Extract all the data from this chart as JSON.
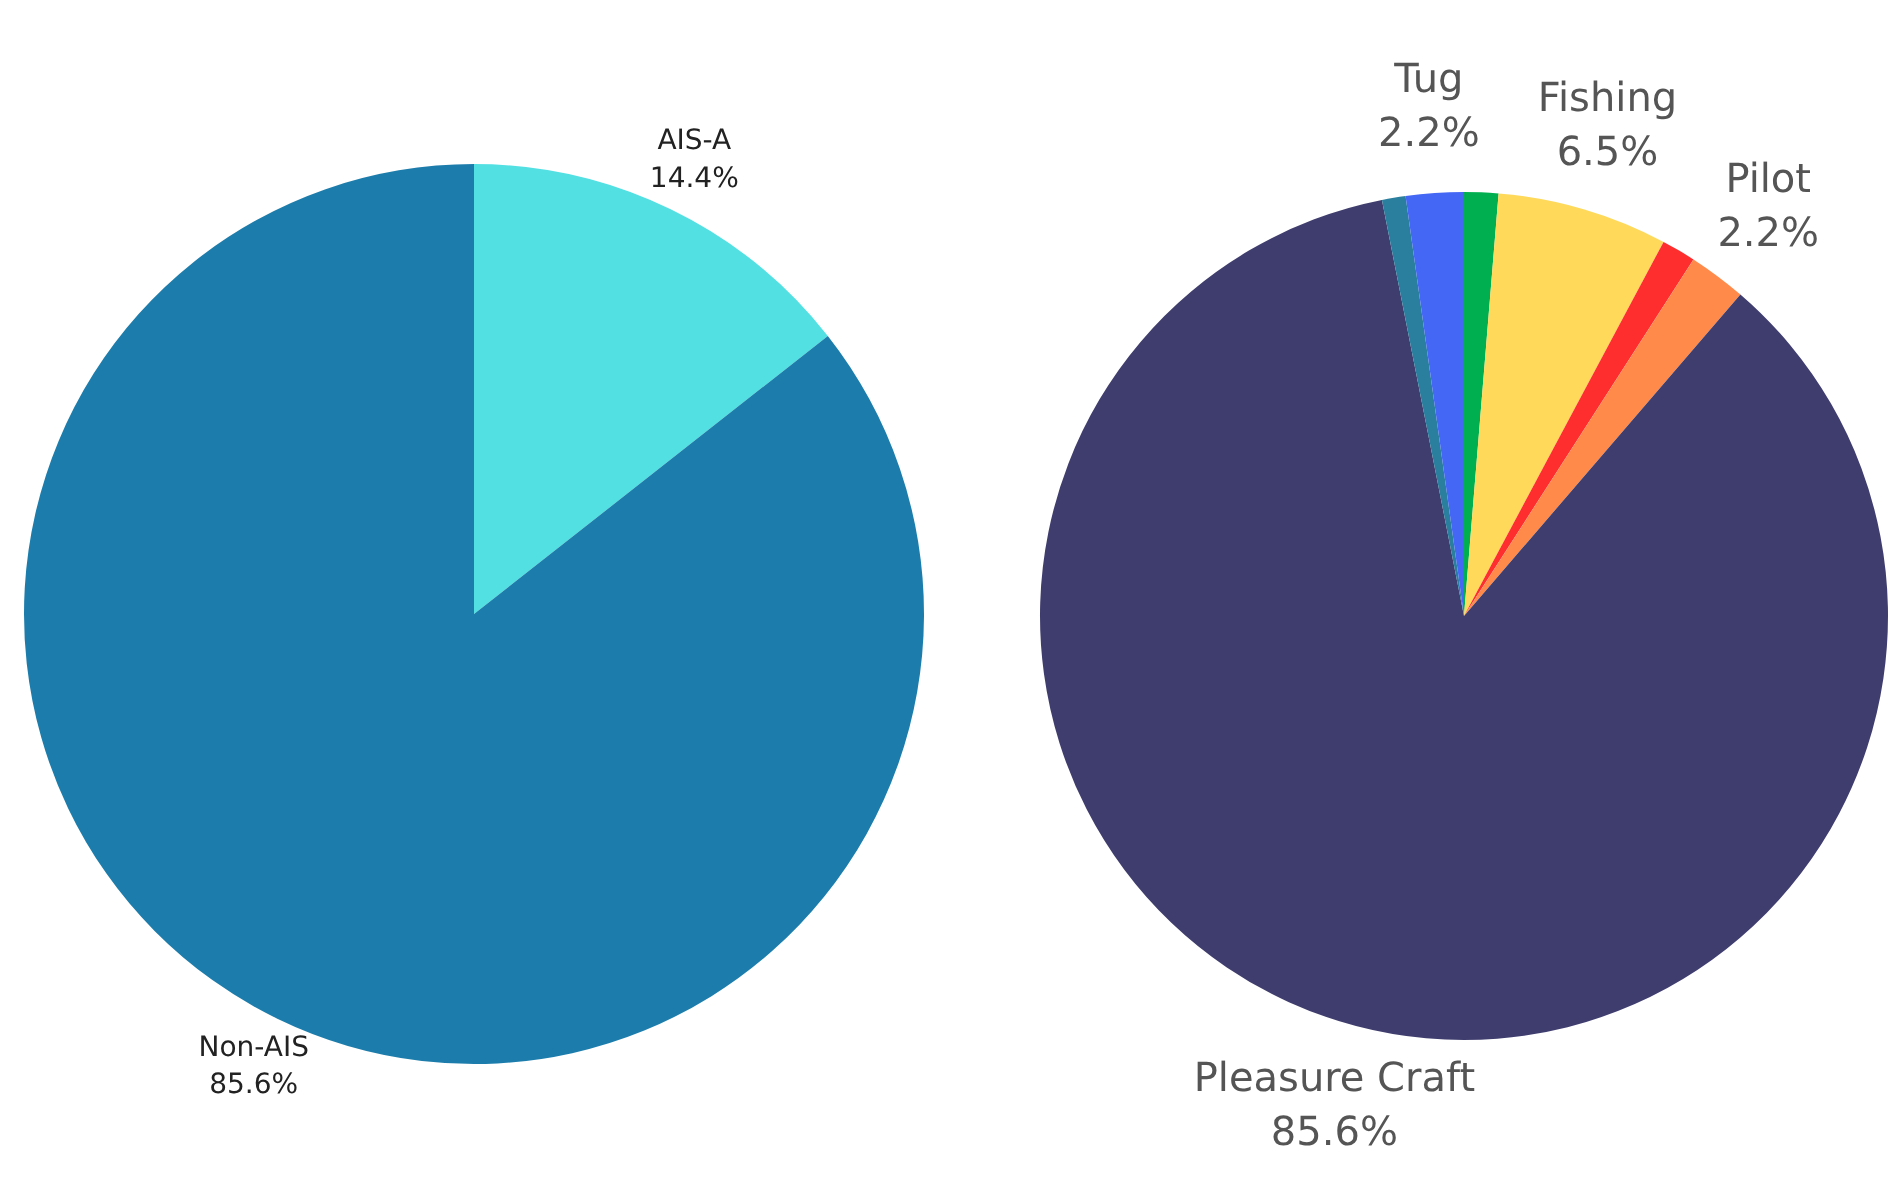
{
  "chart_data": [
    {
      "type": "pie",
      "categories": [
        "AIS-A",
        "Non-AIS"
      ],
      "values": [
        14.4,
        85.6
      ],
      "colors": [
        "#53e0e3",
        "#1c7dac"
      ],
      "value_labels": [
        "14.4%",
        "85.6%"
      ]
    },
    {
      "type": "pie",
      "categories": [
        null,
        "Fishing",
        null,
        "Pilot",
        "Pleasure Craft",
        null,
        "Tug"
      ],
      "values": [
        1.3,
        6.5,
        1.3,
        2.2,
        85.6,
        0.9,
        2.2
      ],
      "colors": [
        "#00b050",
        "#ffd95a",
        "#ff2e2e",
        "#ff8a4a",
        "#3f3d6e",
        "#2a7f9e",
        "#4467f5"
      ],
      "value_labels": [
        null,
        "6.5%",
        null,
        "2.2%",
        "85.6%",
        null,
        "2.2%"
      ]
    }
  ]
}
